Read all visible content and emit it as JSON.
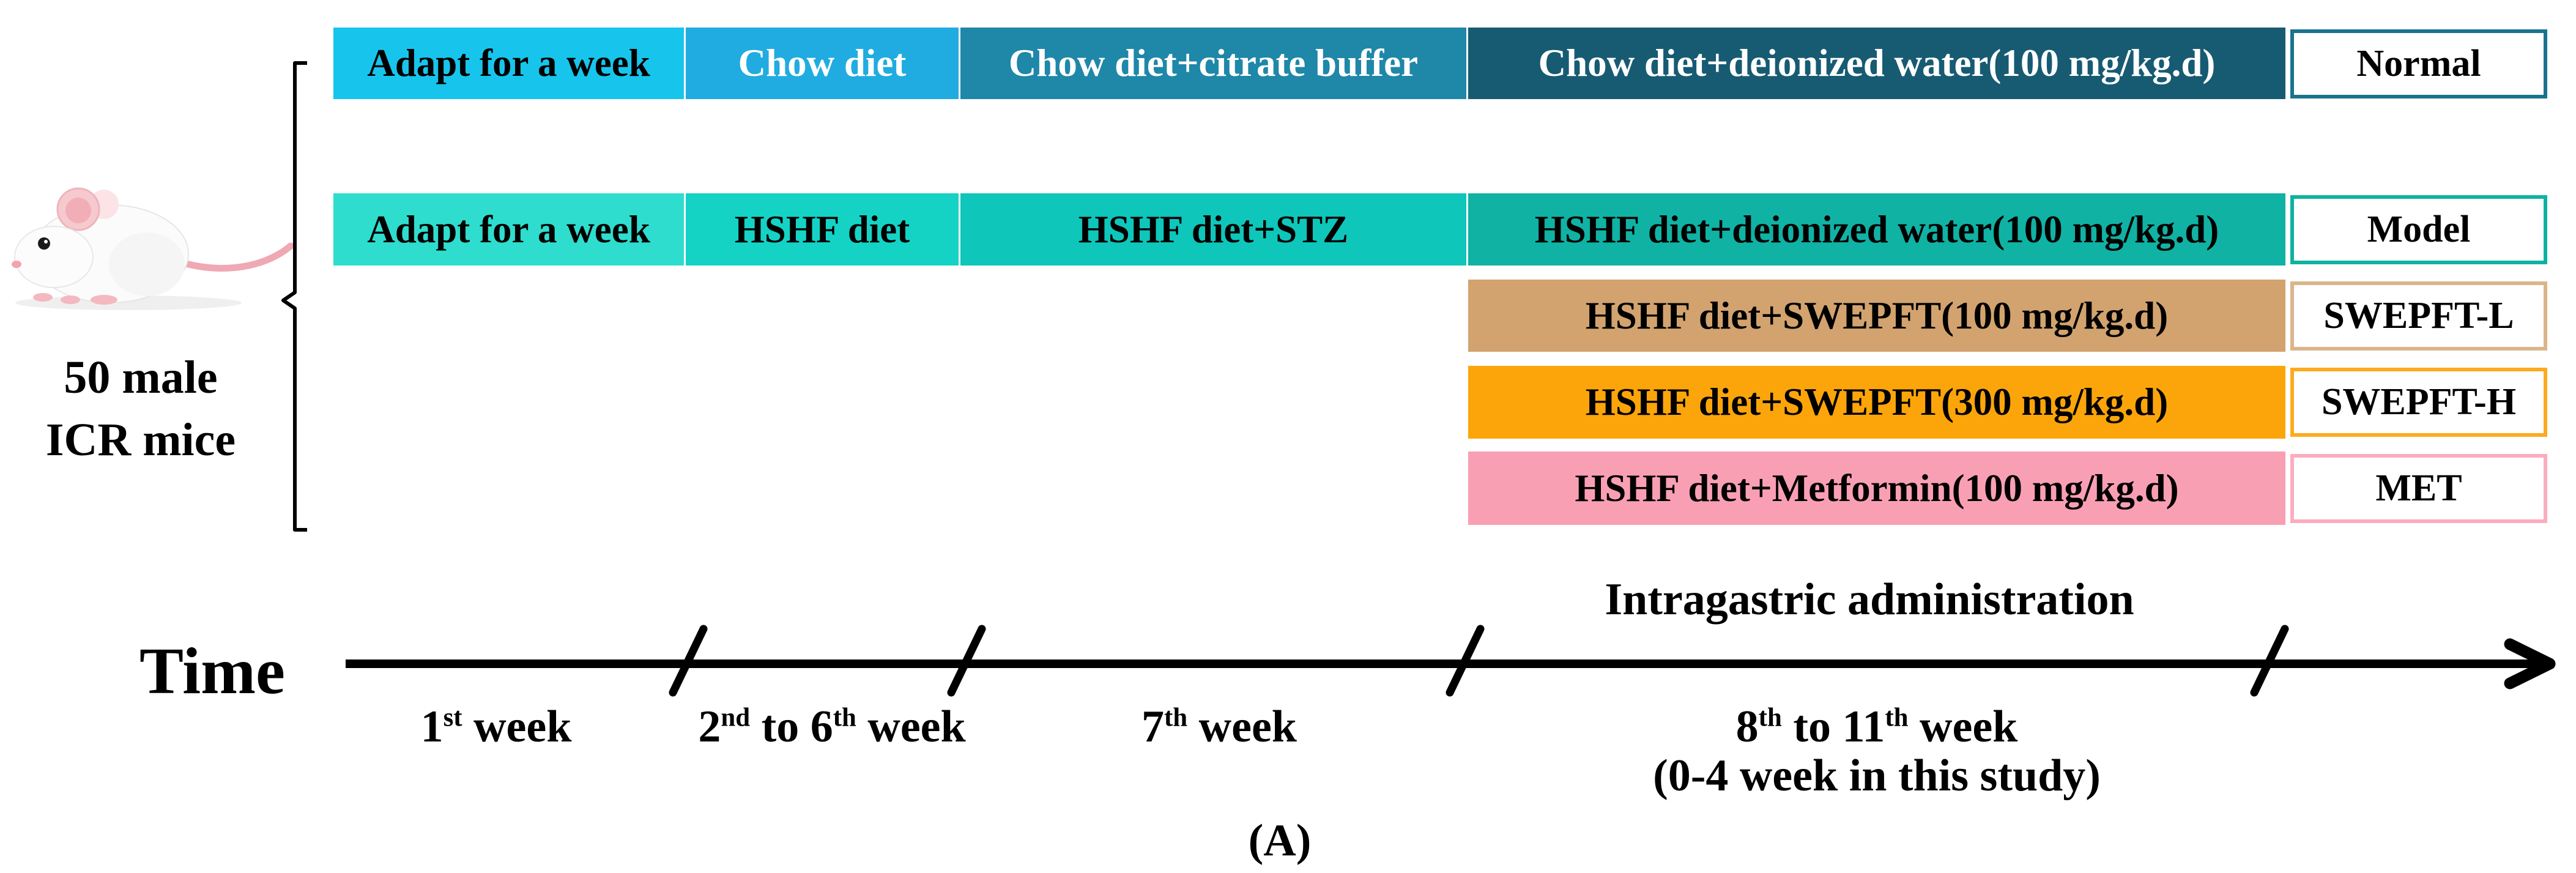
{
  "figure": {
    "caption": "(A)",
    "subject": {
      "line1": "50 male",
      "line2": "ICR mice"
    },
    "icons": {
      "mouse": "white-icr-mouse-photo",
      "brace": "left-curly-brace",
      "axis_arrow": "right-arrowhead"
    },
    "colors": {
      "normal_track": [
        "#17c5ec",
        "#20ace0",
        "#1f87a8",
        "#175b72"
      ],
      "model_track": [
        "#2eddcd",
        "#14d3c5",
        "#0ec6ba",
        "#10b2a4"
      ],
      "swepft_l_track": "#d2a36f",
      "swepft_h_track": "#fca50a",
      "met_track": "#f99fb4",
      "normal_border": "#19738f",
      "model_border": "#0eb2a2",
      "swepft_l_border": "#dbb58a",
      "swepft_h_border": "#fcaa1e",
      "met_border": "#fbadbe",
      "axis": "#000000"
    },
    "groups": [
      {
        "id": "normal",
        "label": "Normal",
        "border": "#19738f",
        "segments": [
          {
            "text": "Adapt for a week",
            "bg": "#17c5ec",
            "fg": "#000000"
          },
          {
            "text": "Chow diet",
            "bg": "#20ace0",
            "fg": "#ffffff"
          },
          {
            "text": "Chow diet+citrate buffer",
            "bg": "#1f87a8",
            "fg": "#ffffff"
          },
          {
            "text": "Chow diet+deionized water(100 mg/kg.d)",
            "bg": "#175b72",
            "fg": "#ffffff"
          }
        ]
      },
      {
        "id": "model",
        "label": "Model",
        "border": "#0eb2a2",
        "segments": [
          {
            "text": "Adapt for a week",
            "bg": "#2eddcd",
            "fg": "#000000"
          },
          {
            "text": "HSHF diet",
            "bg": "#14d3c5",
            "fg": "#000000"
          },
          {
            "text": "HSHF diet+STZ",
            "bg": "#0ec6ba",
            "fg": "#000000"
          },
          {
            "text": "HSHF diet+deionized water(100 mg/kg.d)",
            "bg": "#10b2a4",
            "fg": "#000000"
          }
        ]
      },
      {
        "id": "swepft-l",
        "label": "SWEPFT-L",
        "border": "#dbb58a",
        "segments": [
          {
            "text": "HSHF diet+SWEPFT(100 mg/kg.d)",
            "bg": "#d2a36f",
            "fg": "#000000"
          }
        ]
      },
      {
        "id": "swepft-h",
        "label": "SWEPFT-H",
        "border": "#fcaa1e",
        "segments": [
          {
            "text": "HSHF diet+SWEPFT(300 mg/kg.d)",
            "bg": "#fca50a",
            "fg": "#000000"
          }
        ]
      },
      {
        "id": "met",
        "label": "MET",
        "border": "#fbadbe",
        "segments": [
          {
            "text": "HSHF diet+Metformin(100 mg/kg.d)",
            "bg": "#f99fb4",
            "fg": "#000000"
          }
        ]
      }
    ],
    "timeline": {
      "axis_label": "Time",
      "admin_note": "Intragastric administration",
      "week_labels": [
        [
          {
            "text": "1"
          },
          {
            "text": "st",
            "sup": true
          },
          {
            "text": " week"
          }
        ],
        [
          {
            "text": "2"
          },
          {
            "text": "nd",
            "sup": true
          },
          {
            "text": " to 6"
          },
          {
            "text": "th",
            "sup": true
          },
          {
            "text": " week"
          }
        ],
        [
          {
            "text": "7"
          },
          {
            "text": "th",
            "sup": true
          },
          {
            "text": " week"
          }
        ],
        [
          {
            "text": "8"
          },
          {
            "text": "th",
            "sup": true
          },
          {
            "text": " to 11"
          },
          {
            "text": "th",
            "sup": true
          },
          {
            "text": " week"
          }
        ]
      ],
      "sub_note": [
        {
          "text": "(0-4 week in this study)"
        }
      ]
    }
  }
}
